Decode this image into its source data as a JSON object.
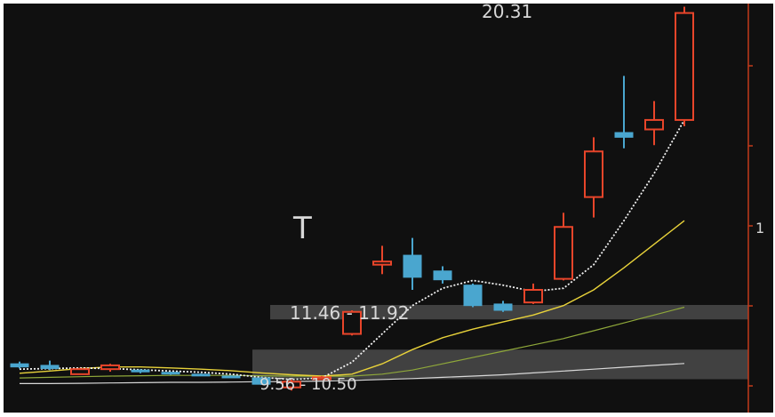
{
  "chart_data": {
    "type": "candlestick",
    "title": "",
    "xlabel": "",
    "ylabel": "",
    "ylim": [
      8.5,
      21.5
    ],
    "grid": false,
    "legend": "none",
    "colors": {
      "background": "#101010",
      "up": "#e8452a",
      "down": "#4aa6cf",
      "ma_short": "#f2f2f2",
      "ma_mid": "#e8d23a",
      "ma_long": "#8fa83a",
      "ma_longest": "#d8d8d8",
      "axis": "#c23a1a"
    },
    "candles": [
      {
        "o": 10.05,
        "c": 9.95,
        "h": 10.12,
        "l": 9.9
      },
      {
        "o": 10.0,
        "c": 9.9,
        "h": 10.15,
        "l": 9.85
      },
      {
        "o": 9.72,
        "c": 9.88,
        "h": 9.92,
        "l": 9.7
      },
      {
        "o": 9.88,
        "c": 10.0,
        "h": 10.05,
        "l": 9.8
      },
      {
        "o": 9.85,
        "c": 9.8,
        "h": 9.88,
        "l": 9.75
      },
      {
        "o": 9.78,
        "c": 9.74,
        "h": 9.8,
        "l": 9.7
      },
      {
        "o": 9.72,
        "c": 9.68,
        "h": 9.74,
        "l": 9.66
      },
      {
        "o": 9.66,
        "c": 9.64,
        "h": 9.68,
        "l": 9.62
      },
      {
        "o": 9.6,
        "c": 9.4,
        "h": 9.62,
        "l": 9.38
      },
      {
        "o": 9.3,
        "c": 9.48,
        "h": 9.55,
        "l": 9.2
      },
      {
        "o": 9.56,
        "c": 9.62,
        "h": 9.66,
        "l": 9.55
      },
      {
        "o": 11.0,
        "c": 11.7,
        "h": 11.75,
        "l": 10.95
      },
      {
        "o": 13.2,
        "c": 13.3,
        "h": 13.8,
        "l": 12.9
      },
      {
        "o": 13.5,
        "c": 12.8,
        "h": 14.05,
        "l": 12.4
      },
      {
        "o": 13.0,
        "c": 12.72,
        "h": 13.15,
        "l": 12.6
      },
      {
        "o": 12.55,
        "c": 11.9,
        "h": 12.6,
        "l": 11.85
      },
      {
        "o": 11.95,
        "c": 11.75,
        "h": 12.05,
        "l": 11.7
      },
      {
        "o": 12.0,
        "c": 12.4,
        "h": 12.6,
        "l": 11.95
      },
      {
        "o": 12.75,
        "c": 14.4,
        "h": 14.85,
        "l": 12.7
      },
      {
        "o": 15.35,
        "c": 16.8,
        "h": 17.25,
        "l": 14.7
      },
      {
        "o": 17.4,
        "c": 17.25,
        "h": 19.2,
        "l": 16.9
      },
      {
        "o": 17.5,
        "c": 17.8,
        "h": 18.4,
        "l": 17.0
      },
      {
        "o": 17.8,
        "c": 21.2,
        "h": 21.4,
        "l": 17.6
      }
    ],
    "ma_short": [
      9.88,
      9.9,
      9.92,
      9.9,
      9.86,
      9.82,
      9.78,
      9.72,
      9.62,
      9.55,
      9.6,
      10.1,
      11.0,
      11.9,
      12.45,
      12.7,
      12.55,
      12.35,
      12.45,
      13.2,
      14.6,
      16.1,
      17.8
    ],
    "ma_mid": [
      9.75,
      9.82,
      9.9,
      9.95,
      9.95,
      9.92,
      9.88,
      9.83,
      9.76,
      9.7,
      9.66,
      9.72,
      10.05,
      10.5,
      10.88,
      11.15,
      11.38,
      11.6,
      11.9,
      12.4,
      13.1,
      13.85,
      14.6
    ],
    "ma_long": [
      9.6,
      9.62,
      9.64,
      9.66,
      9.67,
      9.68,
      9.68,
      9.68,
      9.67,
      9.66,
      9.65,
      9.66,
      9.72,
      9.85,
      10.05,
      10.25,
      10.45,
      10.65,
      10.85,
      11.1,
      11.35,
      11.6,
      11.85
    ],
    "ma_longest": [
      9.42,
      9.42,
      9.43,
      9.44,
      9.45,
      9.46,
      9.46,
      9.47,
      9.48,
      9.49,
      9.5,
      9.52,
      9.55,
      9.58,
      9.62,
      9.66,
      9.7,
      9.76,
      9.82,
      9.88,
      9.94,
      10.0,
      10.06
    ],
    "price_bands": [
      {
        "low": 11.46,
        "high": 11.92
      },
      {
        "low": 9.56,
        "high": 10.5
      }
    ],
    "annotations": [
      {
        "text": "11.46 - 11.92"
      },
      {
        "text": "9.56 - 10.50"
      },
      {
        "text": "20.31"
      },
      {
        "text": "T"
      },
      {
        "text": "1"
      }
    ]
  }
}
